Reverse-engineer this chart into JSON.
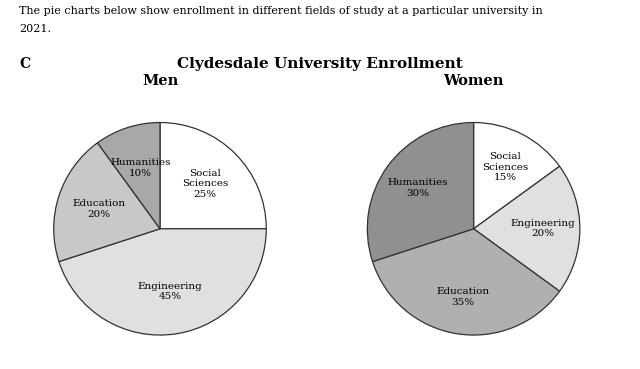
{
  "title": "Clydesdale University Enrollment",
  "header_line1": "The pie charts below show enrollment in different fields of study at a particular university in",
  "header_line2": "2021.",
  "corner_label": "C",
  "men_label": "Men",
  "women_label": "Women",
  "men_slices": {
    "labels": [
      "Social\nSciences\n25%",
      "Engineering\n45%",
      "Education\n20%",
      "Humanities\n10%"
    ],
    "values": [
      25,
      45,
      20,
      10
    ],
    "colors": [
      "#ffffff",
      "#e0e0e0",
      "#c8c8c8",
      "#a8a8a8"
    ],
    "startangle": 90
  },
  "women_slices": {
    "labels": [
      "Social\nSciences\n15%",
      "Engineering\n20%",
      "Education\n35%",
      "Humanities\n30%"
    ],
    "values": [
      15,
      20,
      35,
      30
    ],
    "colors": [
      "#ffffff",
      "#e0e0e0",
      "#b0b0b0",
      "#909090"
    ],
    "startangle": 90
  }
}
